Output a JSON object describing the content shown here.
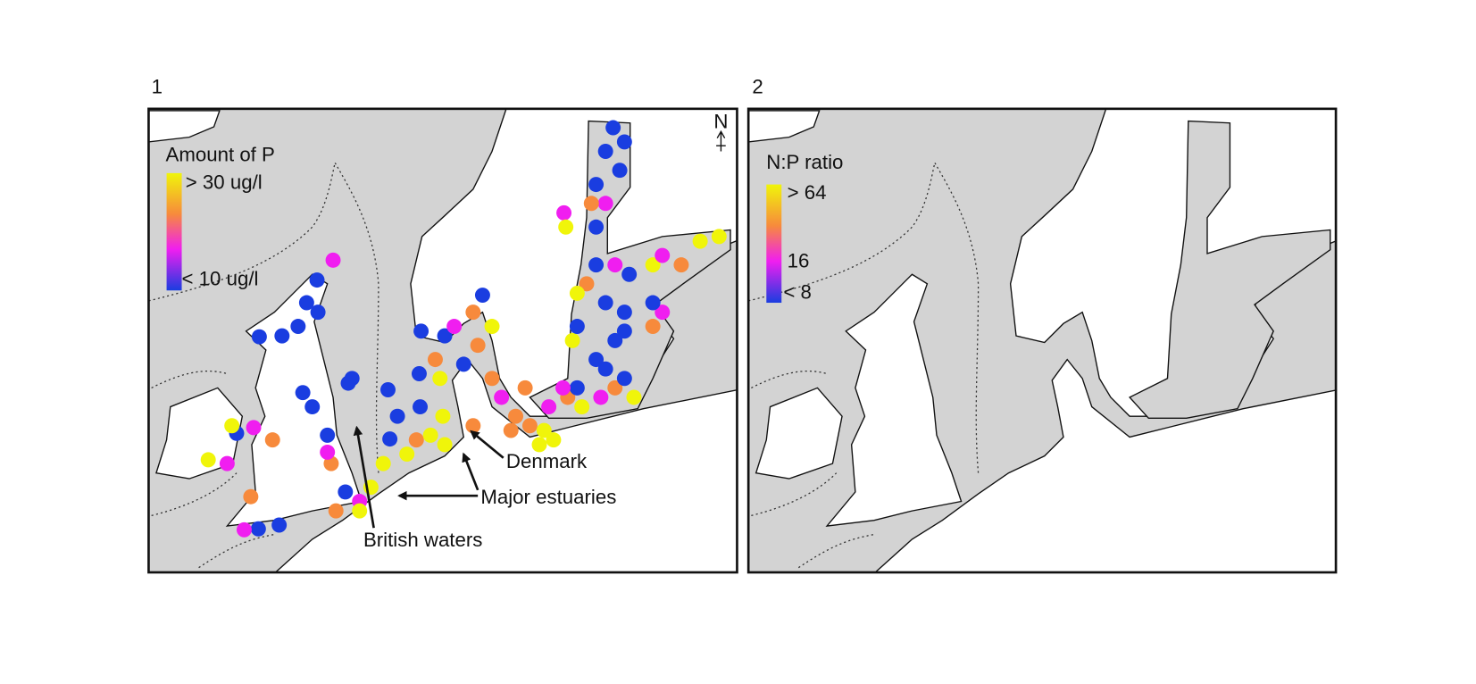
{
  "panels": [
    {
      "label": "1",
      "legend": {
        "title": "Amount of P",
        "high": "> 30 ug/l",
        "low": "< 10 ug/l"
      },
      "north": "N",
      "annotations": [
        "Denmark",
        "Major estuaries",
        "British waters"
      ]
    },
    {
      "label": "2",
      "legend": {
        "title": "N:P ratio",
        "high": "> 64",
        "mid": "16",
        "low": "< 8"
      }
    }
  ]
}
